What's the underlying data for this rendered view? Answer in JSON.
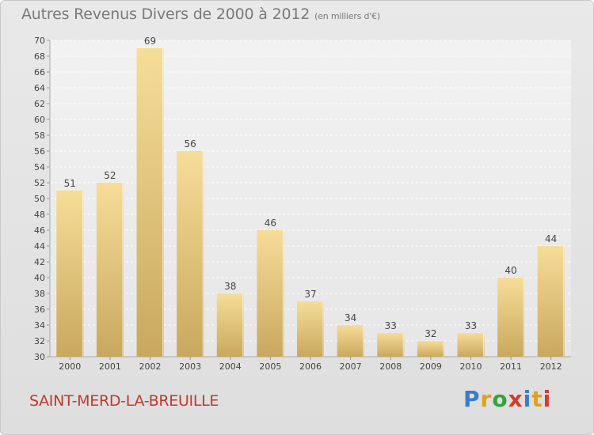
{
  "header": {
    "title": "Autres Revenus Divers de 2000 à 2012",
    "subtitle": "(en milliers d'€)"
  },
  "footer": {
    "commune": "SAINT-MERD-LA-BREUILLE",
    "logo_letters": [
      "P",
      "r",
      "o",
      "x",
      "i",
      "t",
      "i"
    ]
  },
  "colors": {
    "bar_light": "#f6dd98",
    "bar_dark": "#c9a85e",
    "commune_text": "#c0392b",
    "logo": [
      "#3a7dc9",
      "#e0a21d",
      "#3aa13a",
      "#d63a2a",
      "#3a7dc9",
      "#e0a21d",
      "#d63a2a"
    ]
  },
  "chart_data": {
    "type": "bar",
    "categories": [
      "2000",
      "2001",
      "2002",
      "2003",
      "2004",
      "2005",
      "2006",
      "2007",
      "2008",
      "2009",
      "2010",
      "2011",
      "2012"
    ],
    "values": [
      51,
      52,
      69,
      56,
      38,
      46,
      37,
      34,
      33,
      32,
      33,
      40,
      44
    ],
    "title": "Autres Revenus Divers de 2000 à 2012",
    "subtitle": "(en milliers d'€)",
    "ylim": [
      30,
      70
    ],
    "ytick_step": 2,
    "grid": true,
    "data_labels": true
  }
}
